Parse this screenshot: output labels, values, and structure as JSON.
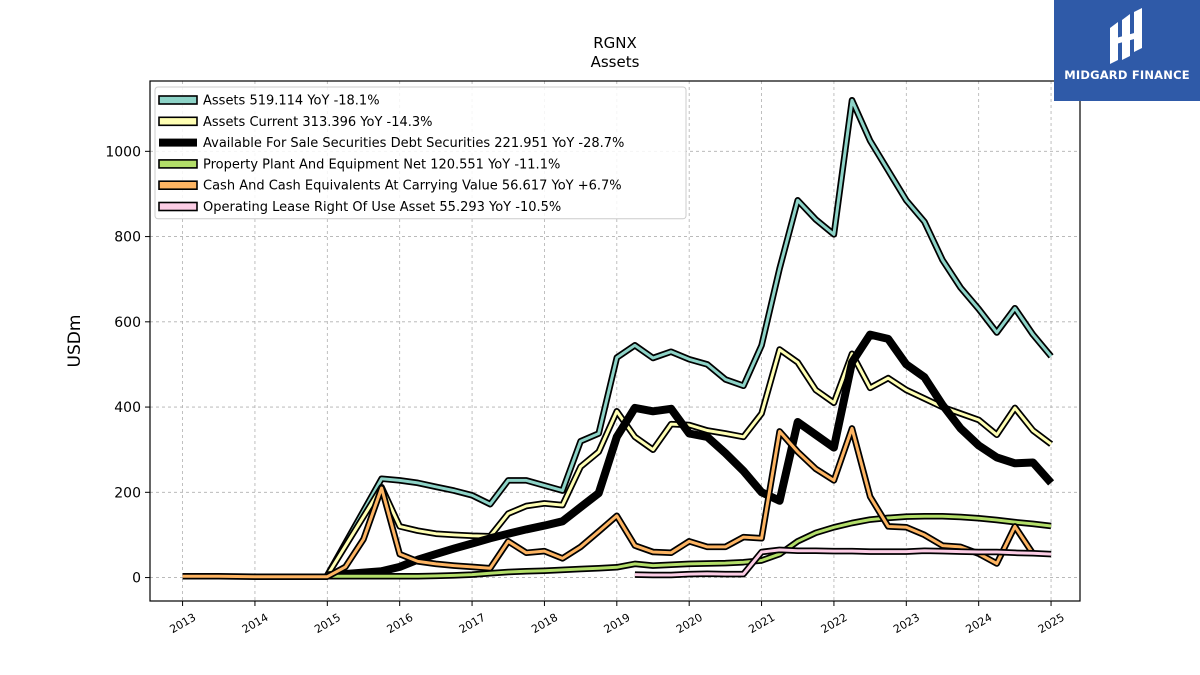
{
  "logo": {
    "text": "MIDGARD FINANCE",
    "icon": "midgard-logo-icon",
    "background": "#2f5aa8"
  },
  "chart_data": {
    "type": "line",
    "title": "RGNX",
    "subtitle": "Assets",
    "ylabel": "USDm",
    "xlim": [
      2012.55,
      2025.4
    ],
    "ylim": [
      -55,
      1165
    ],
    "yticks": [
      0,
      200,
      400,
      600,
      800,
      1000
    ],
    "xticks": [
      2013,
      2014,
      2015,
      2016,
      2017,
      2018,
      2019,
      2020,
      2021,
      2022,
      2023,
      2024,
      2025
    ],
    "grid": true,
    "legend_position": "top-left",
    "series": [
      {
        "name": "Assets",
        "legend": "Assets  519.114 YoY -18.1%",
        "color": "#8dd3c7",
        "width": 3,
        "points": [
          [
            2015.0,
            5
          ],
          [
            2015.75,
            232
          ],
          [
            2016.0,
            228
          ],
          [
            2016.25,
            222
          ],
          [
            2016.5,
            213
          ],
          [
            2016.75,
            204
          ],
          [
            2017.0,
            193
          ],
          [
            2017.25,
            172
          ],
          [
            2017.5,
            228
          ],
          [
            2017.75,
            228
          ],
          [
            2018.0,
            216
          ],
          [
            2018.25,
            204
          ],
          [
            2018.5,
            320
          ],
          [
            2018.75,
            338
          ],
          [
            2019.0,
            516
          ],
          [
            2019.25,
            545
          ],
          [
            2019.5,
            515
          ],
          [
            2019.75,
            530
          ],
          [
            2020.0,
            512
          ],
          [
            2020.25,
            500
          ],
          [
            2020.5,
            465
          ],
          [
            2020.75,
            450
          ],
          [
            2021.0,
            545
          ],
          [
            2021.25,
            725
          ],
          [
            2021.5,
            885
          ],
          [
            2021.75,
            840
          ],
          [
            2022.0,
            805
          ],
          [
            2022.25,
            1120
          ],
          [
            2022.5,
            1025
          ],
          [
            2022.75,
            955
          ],
          [
            2023.0,
            885
          ],
          [
            2023.25,
            835
          ],
          [
            2023.5,
            745
          ],
          [
            2023.75,
            680
          ],
          [
            2024.0,
            630
          ],
          [
            2024.25,
            575
          ],
          [
            2024.5,
            632
          ],
          [
            2024.75,
            570
          ],
          [
            2025.0,
            519
          ]
        ]
      },
      {
        "name": "Assets Current",
        "legend": "Assets Current  313.396 YoY -14.3%",
        "color": "#ffffb3",
        "width": 3,
        "points": [
          [
            2015.0,
            5
          ],
          [
            2015.75,
            212
          ],
          [
            2016.0,
            120
          ],
          [
            2016.25,
            110
          ],
          [
            2016.5,
            103
          ],
          [
            2016.75,
            100
          ],
          [
            2017.0,
            98
          ],
          [
            2017.25,
            97
          ],
          [
            2017.5,
            150
          ],
          [
            2017.75,
            168
          ],
          [
            2018.0,
            174
          ],
          [
            2018.25,
            170
          ],
          [
            2018.5,
            260
          ],
          [
            2018.75,
            295
          ],
          [
            2019.0,
            390
          ],
          [
            2019.25,
            330
          ],
          [
            2019.5,
            300
          ],
          [
            2019.75,
            360
          ],
          [
            2020.0,
            358
          ],
          [
            2020.25,
            345
          ],
          [
            2020.5,
            338
          ],
          [
            2020.75,
            330
          ],
          [
            2021.0,
            385
          ],
          [
            2021.25,
            535
          ],
          [
            2021.5,
            505
          ],
          [
            2021.75,
            440
          ],
          [
            2022.0,
            410
          ],
          [
            2022.25,
            525
          ],
          [
            2022.5,
            445
          ],
          [
            2022.75,
            468
          ],
          [
            2023.0,
            440
          ],
          [
            2023.25,
            420
          ],
          [
            2023.5,
            400
          ],
          [
            2023.75,
            385
          ],
          [
            2024.0,
            370
          ],
          [
            2024.25,
            335
          ],
          [
            2024.5,
            398
          ],
          [
            2024.75,
            345
          ],
          [
            2025.0,
            313
          ]
        ]
      },
      {
        "name": "Available For Sale Securities Debt Securities",
        "legend": "Available For Sale Securities Debt Securities  221.951 YoY -28.7%",
        "color": "#000000",
        "width": 8,
        "points": [
          [
            2015.0,
            5
          ],
          [
            2015.75,
            15
          ],
          [
            2016.0,
            25
          ],
          [
            2016.25,
            42
          ],
          [
            2016.5,
            55
          ],
          [
            2016.75,
            68
          ],
          [
            2017.0,
            80
          ],
          [
            2017.25,
            92
          ],
          [
            2017.5,
            103
          ],
          [
            2017.75,
            113
          ],
          [
            2018.0,
            122
          ],
          [
            2018.25,
            132
          ],
          [
            2018.5,
            165
          ],
          [
            2018.75,
            198
          ],
          [
            2019.0,
            330
          ],
          [
            2019.25,
            398
          ],
          [
            2019.5,
            390
          ],
          [
            2019.75,
            396
          ],
          [
            2020.0,
            338
          ],
          [
            2020.25,
            330
          ],
          [
            2020.5,
            292
          ],
          [
            2020.75,
            250
          ],
          [
            2021.0,
            200
          ],
          [
            2021.25,
            180
          ],
          [
            2021.5,
            365
          ],
          [
            2021.75,
            335
          ],
          [
            2022.0,
            305
          ],
          [
            2022.25,
            505
          ],
          [
            2022.5,
            570
          ],
          [
            2022.75,
            560
          ],
          [
            2023.0,
            500
          ],
          [
            2023.25,
            470
          ],
          [
            2023.5,
            405
          ],
          [
            2023.75,
            350
          ],
          [
            2024.0,
            310
          ],
          [
            2024.25,
            282
          ],
          [
            2024.5,
            268
          ],
          [
            2024.75,
            270
          ],
          [
            2025.0,
            222
          ]
        ]
      },
      {
        "name": "Property Plant And Equipment Net",
        "legend": "Property Plant And Equipment Net  120.551 YoY -11.1%",
        "color": "#b3de69",
        "width": 3,
        "points": [
          [
            2015.0,
            3
          ],
          [
            2015.75,
            3
          ],
          [
            2016.0,
            3
          ],
          [
            2016.25,
            3
          ],
          [
            2016.5,
            4
          ],
          [
            2016.75,
            5
          ],
          [
            2017.0,
            7
          ],
          [
            2017.25,
            10
          ],
          [
            2017.5,
            13
          ],
          [
            2017.75,
            15
          ],
          [
            2018.0,
            16
          ],
          [
            2018.25,
            18
          ],
          [
            2018.5,
            20
          ],
          [
            2018.75,
            22
          ],
          [
            2019.0,
            24
          ],
          [
            2019.25,
            32
          ],
          [
            2019.5,
            28
          ],
          [
            2019.75,
            30
          ],
          [
            2020.0,
            32
          ],
          [
            2020.25,
            33
          ],
          [
            2020.5,
            34
          ],
          [
            2020.75,
            36
          ],
          [
            2021.0,
            40
          ],
          [
            2021.25,
            55
          ],
          [
            2021.5,
            85
          ],
          [
            2021.75,
            105
          ],
          [
            2022.0,
            118
          ],
          [
            2022.25,
            128
          ],
          [
            2022.5,
            136
          ],
          [
            2022.75,
            140
          ],
          [
            2023.0,
            143
          ],
          [
            2023.25,
            144
          ],
          [
            2023.5,
            144
          ],
          [
            2023.75,
            142
          ],
          [
            2024.0,
            139
          ],
          [
            2024.25,
            135
          ],
          [
            2024.5,
            130
          ],
          [
            2024.75,
            126
          ],
          [
            2025.0,
            121
          ]
        ]
      },
      {
        "name": "Cash And Cash Equivalents At Carrying Value",
        "legend": "Cash And Cash Equivalents At Carrying Value  56.617 YoY +6.7%",
        "color": "#fdb462",
        "width": 3,
        "points": [
          [
            2013.0,
            3
          ],
          [
            2013.5,
            3
          ],
          [
            2014.0,
            2
          ],
          [
            2014.5,
            2
          ],
          [
            2015.0,
            2
          ],
          [
            2015.25,
            25
          ],
          [
            2015.5,
            90
          ],
          [
            2015.75,
            210
          ],
          [
            2016.0,
            55
          ],
          [
            2016.25,
            38
          ],
          [
            2016.5,
            32
          ],
          [
            2016.75,
            28
          ],
          [
            2017.0,
            25
          ],
          [
            2017.25,
            22
          ],
          [
            2017.5,
            85
          ],
          [
            2017.75,
            58
          ],
          [
            2018.0,
            62
          ],
          [
            2018.25,
            45
          ],
          [
            2018.5,
            72
          ],
          [
            2018.75,
            108
          ],
          [
            2019.0,
            145
          ],
          [
            2019.25,
            75
          ],
          [
            2019.5,
            60
          ],
          [
            2019.75,
            58
          ],
          [
            2020.0,
            85
          ],
          [
            2020.25,
            72
          ],
          [
            2020.5,
            72
          ],
          [
            2020.75,
            95
          ],
          [
            2021.0,
            92
          ],
          [
            2021.25,
            343
          ],
          [
            2021.5,
            295
          ],
          [
            2021.75,
            255
          ],
          [
            2022.0,
            228
          ],
          [
            2022.25,
            350
          ],
          [
            2022.5,
            190
          ],
          [
            2022.75,
            120
          ],
          [
            2023.0,
            118
          ],
          [
            2023.25,
            100
          ],
          [
            2023.5,
            75
          ],
          [
            2023.75,
            72
          ],
          [
            2024.0,
            56
          ],
          [
            2024.25,
            33
          ],
          [
            2024.5,
            120
          ],
          [
            2024.75,
            56
          ]
        ]
      },
      {
        "name": "Operating Lease Right Of Use Asset",
        "legend": "Operating Lease Right Of Use Asset  55.293 YoY -10.5%",
        "color": "#fccde5",
        "width": 3,
        "points": [
          [
            2019.25,
            7
          ],
          [
            2019.5,
            6
          ],
          [
            2019.75,
            6
          ],
          [
            2020.0,
            8
          ],
          [
            2020.25,
            9
          ],
          [
            2020.5,
            8
          ],
          [
            2020.75,
            8
          ],
          [
            2021.0,
            60
          ],
          [
            2021.25,
            65
          ],
          [
            2021.5,
            63
          ],
          [
            2021.75,
            63
          ],
          [
            2022.0,
            62
          ],
          [
            2022.25,
            62
          ],
          [
            2022.5,
            61
          ],
          [
            2022.75,
            61
          ],
          [
            2023.0,
            61
          ],
          [
            2023.25,
            63
          ],
          [
            2023.5,
            62
          ],
          [
            2023.75,
            61
          ],
          [
            2024.0,
            60
          ],
          [
            2024.25,
            60
          ],
          [
            2024.5,
            58
          ],
          [
            2024.75,
            57
          ],
          [
            2025.0,
            55
          ]
        ]
      }
    ]
  }
}
